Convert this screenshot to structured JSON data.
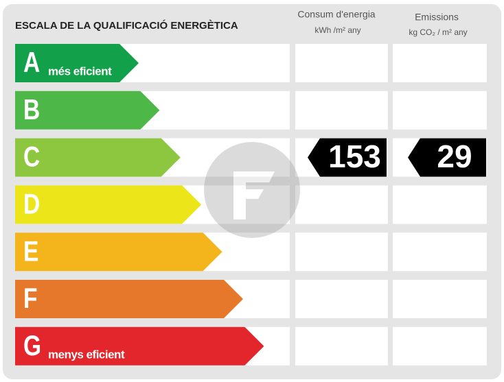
{
  "title": "ESCALA DE LA QUALIFICACIÓ ENERGÈTICA",
  "columns": [
    {
      "title": "Consum d'energia",
      "unit": "kWh /m² any"
    },
    {
      "title": "Emissions",
      "unit": "kg CO₂ / m² any"
    }
  ],
  "ratings": [
    {
      "letter": "A",
      "label": "més eficient",
      "color": "#13a04a"
    },
    {
      "letter": "B",
      "color": "#4db848"
    },
    {
      "letter": "C",
      "color": "#8dc63f",
      "consumption": "153",
      "emissions": "29"
    },
    {
      "letter": "D",
      "color": "#ece51a"
    },
    {
      "letter": "E",
      "color": "#f4b51c"
    },
    {
      "letter": "F",
      "color": "#e5782a"
    },
    {
      "letter": "G",
      "label": "menys eficient",
      "color": "#e2262b"
    }
  ]
}
